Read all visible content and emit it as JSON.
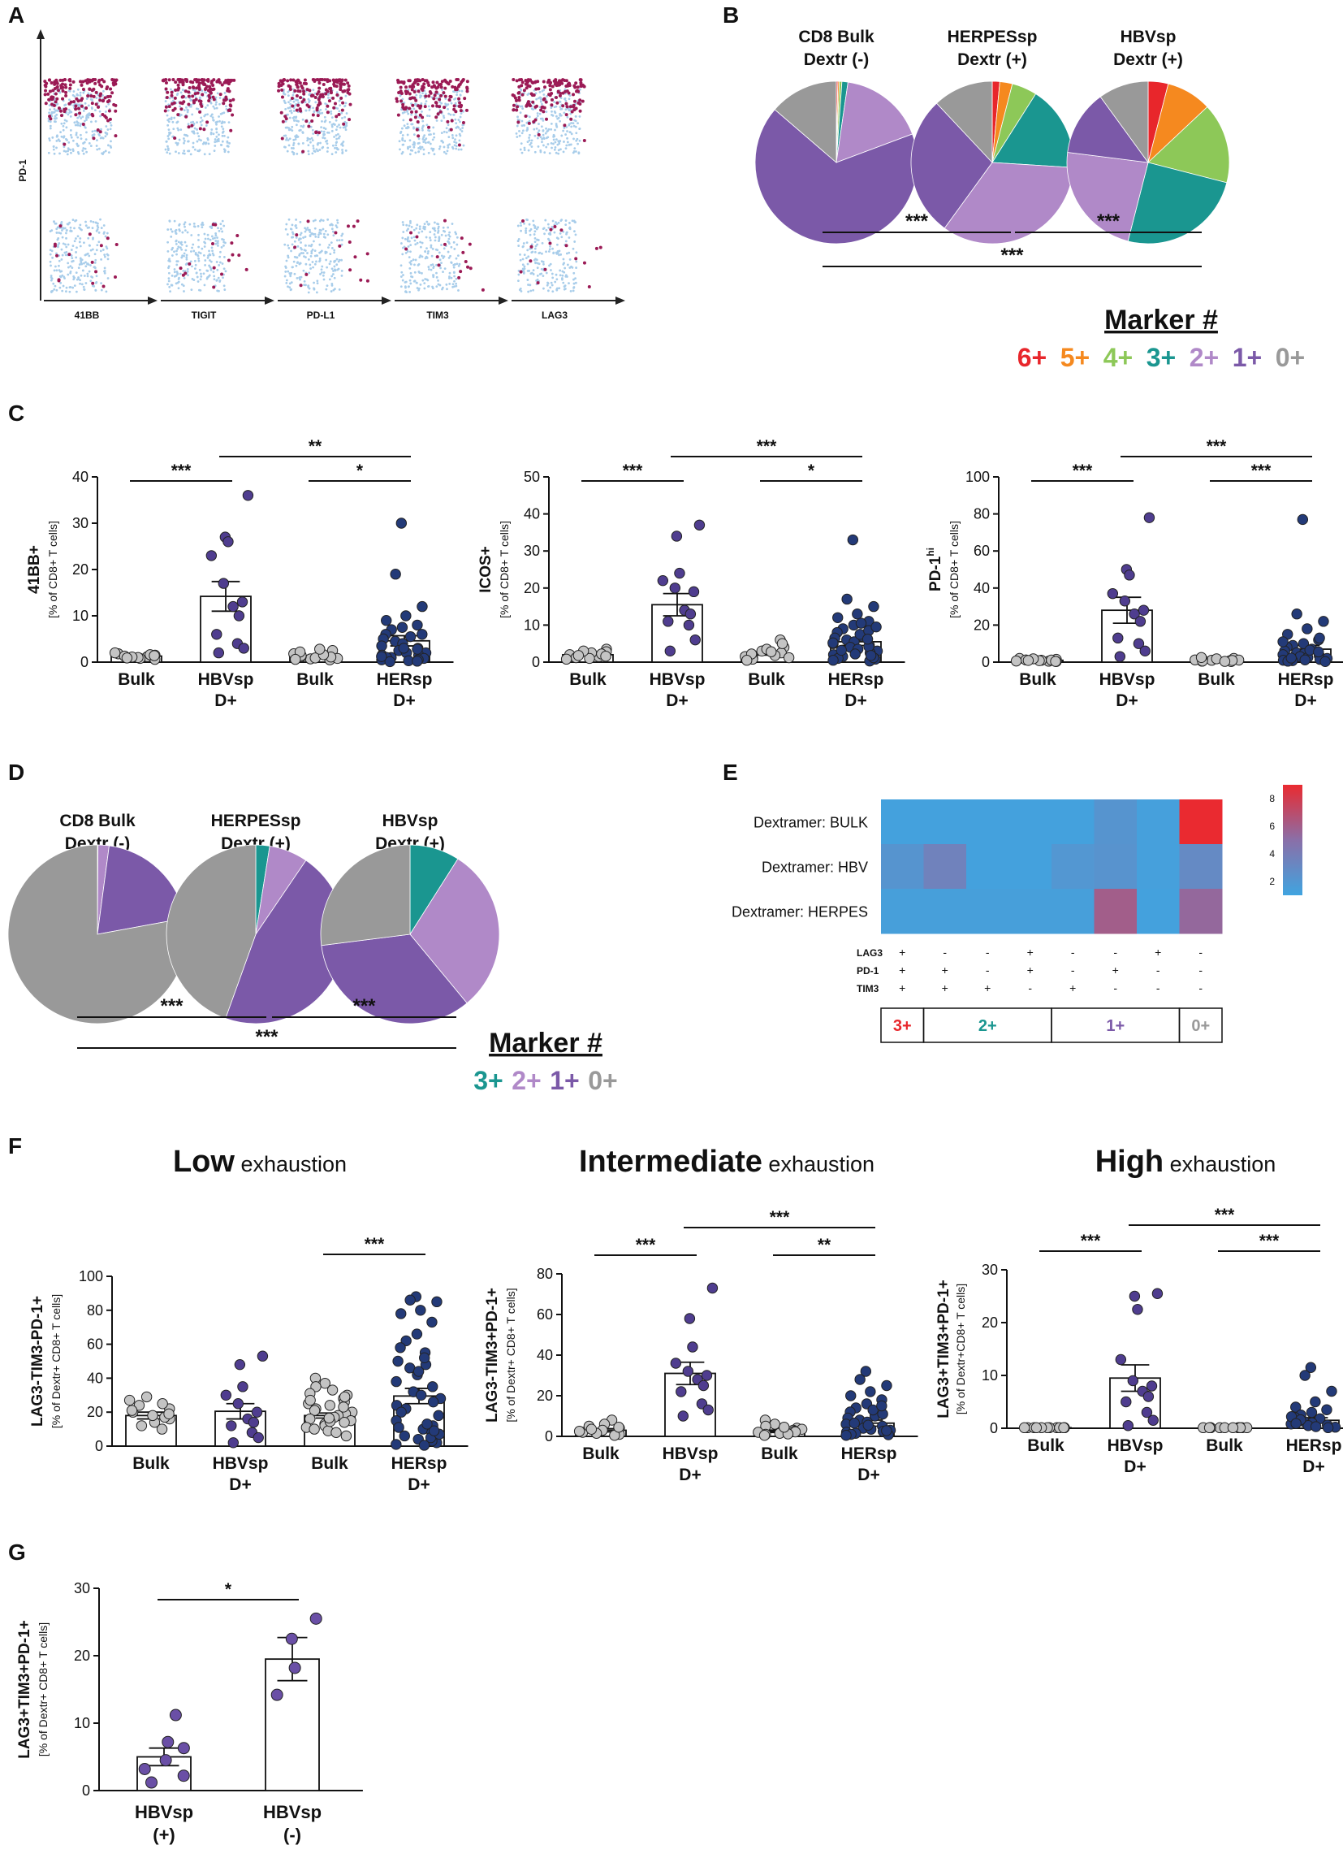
{
  "figure": {
    "panel_labels": [
      "A",
      "B",
      "C",
      "D",
      "E",
      "F",
      "G"
    ],
    "colors": {
      "bulk_gray": "#c4c4c4",
      "hbv_purple": "#4f3d8f",
      "her_navy": "#233a78",
      "herg_purple": "#6a4fa6",
      "dot_pink": "#9b1a55",
      "dot_blue": "#a8cdea",
      "m6": "#e8262b",
      "m5": "#f5891f",
      "m4": "#8dc858",
      "m3": "#1a9690",
      "m2": "#b089c8",
      "m1": "#7b59a8",
      "m0": "#999999"
    }
  },
  "chart_data": [
    {
      "id": "A",
      "type": "scatter",
      "title": "",
      "ylabel": "PD-1",
      "subpanels": [
        "41BB",
        "TIGIT",
        "PD-L1",
        "TIM3",
        "LAG3"
      ]
    },
    {
      "id": "B",
      "type": "pie",
      "pies": [
        {
          "title1": "CD8 Bulk",
          "title2": "Dextr (-)",
          "slices": [
            {
              "label": "6+",
              "value": 0.3
            },
            {
              "label": "5+",
              "value": 0.3
            },
            {
              "label": "4+",
              "value": 0.5
            },
            {
              "label": "3+",
              "value": 1.2
            },
            {
              "label": "2+",
              "value": 17
            },
            {
              "label": "1+",
              "value": 67
            },
            {
              "label": "0+",
              "value": 13.7
            }
          ]
        },
        {
          "title1": "HERPESsp",
          "title2": "Dextr (+)",
          "slices": [
            {
              "label": "6+",
              "value": 1.5
            },
            {
              "label": "5+",
              "value": 2.5
            },
            {
              "label": "4+",
              "value": 5
            },
            {
              "label": "3+",
              "value": 17
            },
            {
              "label": "2+",
              "value": 34
            },
            {
              "label": "1+",
              "value": 28
            },
            {
              "label": "0+",
              "value": 12
            }
          ]
        },
        {
          "title1": "HBVsp",
          "title2": "Dextr (+)",
          "slices": [
            {
              "label": "6+",
              "value": 4
            },
            {
              "label": "5+",
              "value": 9
            },
            {
              "label": "4+",
              "value": 16
            },
            {
              "label": "3+",
              "value": 25
            },
            {
              "label": "2+",
              "value": 23
            },
            {
              "label": "1+",
              "value": 13
            },
            {
              "label": "0+",
              "value": 10
            }
          ]
        }
      ],
      "sig": [
        "***",
        "***",
        "***"
      ],
      "legend_title": "Marker #",
      "legend": [
        "6+",
        "5+",
        "4+",
        "3+",
        "2+",
        "1+",
        "0+"
      ]
    },
    {
      "id": "C1",
      "type": "bar",
      "categories": [
        "Bulk",
        "HBVsp\nD+",
        "Bulk",
        "HERsp\nD+"
      ],
      "values": [
        1.3,
        14.2,
        1.2,
        4.6
      ],
      "sem": [
        0.2,
        3.2,
        0.2,
        1.1
      ],
      "ylabel_main": "41BB+",
      "ylabel_sub": "[% of CD8+ T cells]",
      "ylim": [
        0,
        40
      ],
      "yticks": [
        0,
        10,
        20,
        30,
        40
      ],
      "sig": [
        {
          "from": 0,
          "to": 1,
          "text": "***"
        },
        {
          "from": 2,
          "to": 3,
          "text": "*"
        },
        {
          "from": 1,
          "to": 3,
          "text": "**"
        }
      ],
      "points": [
        [
          1.2,
          0.8,
          1.5,
          1.0,
          1.8,
          0.6,
          1.3,
          2.0,
          1.1,
          0.9,
          1.6,
          1.4
        ],
        [
          36,
          27,
          26,
          23,
          17,
          13,
          12,
          10,
          6,
          4,
          3,
          2
        ],
        [
          1.5,
          0.7,
          1.2,
          2.5,
          1.0,
          0.5,
          1.8,
          0.9,
          1.4,
          2.2,
          0.8,
          1.1,
          1.6,
          2.8,
          0.6
        ],
        [
          30,
          19,
          12,
          10,
          9,
          8,
          7.5,
          7,
          6,
          5.5,
          5,
          4.5,
          4,
          3.5,
          3,
          2.5,
          2,
          2,
          1.5,
          1.5,
          1,
          1,
          0.8,
          0.5,
          0.5,
          0.3,
          0.2,
          0.1,
          3,
          6,
          2.8,
          1.2
        ]
      ]
    },
    {
      "id": "C2",
      "type": "bar",
      "categories": [
        "Bulk",
        "HBVsp\nD+",
        "Bulk",
        "HERsp\nD+"
      ],
      "values": [
        2.0,
        15.5,
        2.2,
        5.5
      ],
      "sem": [
        0.3,
        3.0,
        0.3,
        1.0
      ],
      "ylabel_main": "ICOS+",
      "ylabel_sub": "[% of CD8+ T cells]",
      "ylim": [
        0,
        50
      ],
      "yticks": [
        0,
        10,
        20,
        30,
        40,
        50
      ],
      "sig": [
        {
          "from": 0,
          "to": 1,
          "text": "***"
        },
        {
          "from": 2,
          "to": 3,
          "text": "*"
        },
        {
          "from": 1,
          "to": 3,
          "text": "***"
        }
      ],
      "points": [
        [
          1.5,
          2.5,
          3.5,
          1.0,
          2.0,
          2.8,
          1.2,
          0.8,
          3.0,
          1.8,
          2.2,
          1.6
        ],
        [
          37,
          34,
          24,
          22,
          20,
          19,
          14,
          13,
          11,
          10,
          6,
          3
        ],
        [
          2,
          3,
          1,
          4,
          6,
          2.5,
          1.5,
          3.5,
          0.8,
          2.2,
          1.2,
          5,
          1.8,
          2.8,
          0.5
        ],
        [
          33,
          17,
          15,
          13,
          12,
          11,
          10,
          9,
          8,
          7,
          6.5,
          6,
          5.5,
          5,
          4.5,
          4,
          3.5,
          3,
          2.5,
          2,
          1.5,
          1,
          0.8,
          0.5,
          0.3,
          7.5,
          8.5,
          3.2,
          2.2,
          1.2,
          4.2,
          5.2,
          6.2,
          9.5,
          10.5,
          1.8
        ]
      ]
    },
    {
      "id": "C3",
      "type": "bar",
      "categories": [
        "Bulk",
        "HBVsp\nD+",
        "Bulk",
        "HERsp\nD+"
      ],
      "values": [
        1.0,
        28.0,
        1.0,
        7.0
      ],
      "sem": [
        0.2,
        7.0,
        0.2,
        2.0
      ],
      "ylabel_main": "PD-1",
      "ylabel_sup": "hi",
      "ylabel_sub": "[% of CD8+ T cells]",
      "ylim": [
        0,
        100
      ],
      "yticks": [
        0,
        20,
        40,
        60,
        80,
        100
      ],
      "sig": [
        {
          "from": 0,
          "to": 1,
          "text": "***"
        },
        {
          "from": 2,
          "to": 3,
          "text": "***"
        },
        {
          "from": 1,
          "to": 3,
          "text": "***"
        }
      ],
      "points": [
        [
          0.5,
          1,
          1.5,
          0.8,
          2,
          0.3,
          1.2,
          0.6,
          1.8,
          0.9,
          1.1,
          0.4
        ],
        [
          78,
          50,
          47,
          37,
          33,
          28,
          26,
          22,
          13,
          10,
          6,
          3
        ],
        [
          0.5,
          1,
          1.5,
          2,
          0.8,
          0.3,
          1.2,
          1.8,
          0.6,
          2.5,
          1.1,
          0.9,
          0.4
        ],
        [
          77,
          26,
          22,
          18,
          15,
          12,
          10,
          9,
          8,
          7,
          6,
          5,
          4.5,
          4,
          3.5,
          3,
          2.5,
          2,
          1.5,
          1,
          0.8,
          0.5,
          0.3,
          11,
          13,
          6.5,
          5.5,
          2.2,
          1.2
        ]
      ]
    },
    {
      "id": "D",
      "type": "pie",
      "pies": [
        {
          "title1": "CD8 Bulk",
          "title2": "Dextr (-)",
          "slices": [
            {
              "label": "3+",
              "value": 0.1
            },
            {
              "label": "2+",
              "value": 2
            },
            {
              "label": "1+",
              "value": 20
            },
            {
              "label": "0+",
              "value": 77.9
            }
          ]
        },
        {
          "title1": "HERPESsp",
          "title2": "Dextr (+)",
          "slices": [
            {
              "label": "3+",
              "value": 2.5
            },
            {
              "label": "2+",
              "value": 7
            },
            {
              "label": "1+",
              "value": 46
            },
            {
              "label": "0+",
              "value": 44.5
            }
          ]
        },
        {
          "title1": "HBVsp",
          "title2": "Dextr (+)",
          "slices": [
            {
              "label": "3+",
              "value": 9
            },
            {
              "label": "2+",
              "value": 30
            },
            {
              "label": "1+",
              "value": 34
            },
            {
              "label": "0+",
              "value": 27
            }
          ]
        }
      ],
      "sig": [
        "***",
        "***",
        "***"
      ],
      "legend_title": "Marker #",
      "legend": [
        "3+",
        "2+",
        "1+",
        "0+"
      ]
    },
    {
      "id": "E",
      "type": "heatmap",
      "rows": [
        "Dextramer: BULK",
        "Dextramer: HBV",
        "Dextramer: HERPES"
      ],
      "values": [
        [
          1.2,
          1.2,
          1.2,
          1.2,
          1.2,
          2.2,
          1.3,
          9.0
        ],
        [
          2.2,
          3.6,
          1.2,
          1.2,
          2.0,
          2.3,
          1.3,
          3.0
        ],
        [
          1.4,
          1.4,
          1.4,
          1.4,
          1.4,
          6.0,
          1.2,
          5.4
        ]
      ],
      "colorbar_ticks": [
        "8",
        "6",
        "4",
        "2"
      ],
      "color_low": "#40a4e0",
      "color_mid": "#8a6fa8",
      "color_high": "#ea2a30",
      "vmin": 1,
      "vmax": 9,
      "marker_rows": [
        {
          "name": "LAG3",
          "signs": [
            "+",
            "-",
            "-",
            "+",
            "-",
            "-",
            "+",
            "-"
          ]
        },
        {
          "name": "PD-1",
          "signs": [
            "+",
            "+",
            "-",
            "+",
            "-",
            "+",
            "-",
            "-"
          ]
        },
        {
          "name": "TIM3",
          "signs": [
            "+",
            "+",
            "+",
            "-",
            "+",
            "-",
            "-",
            "-"
          ]
        }
      ],
      "groups": [
        {
          "label": "3+",
          "span": 1,
          "color": "#e8262b"
        },
        {
          "label": "2+",
          "span": 3,
          "color": "#1a9690"
        },
        {
          "label": "1+",
          "span": 3,
          "color": "#7b59a8"
        },
        {
          "label": "0+",
          "span": 1,
          "color": "#999999"
        }
      ]
    },
    {
      "id": "F1",
      "type": "bar",
      "title_bold": "Low",
      "title_rest": " exhaustion",
      "categories": [
        "Bulk",
        "HBVsp\nD+",
        "Bulk",
        "HERsp\nD+"
      ],
      "values": [
        18.0,
        20.5,
        18.0,
        29.5
      ],
      "sem": [
        2.0,
        4.5,
        1.5,
        4.5
      ],
      "ylabel_main": "LAG3-TIM3-PD-1+",
      "ylabel_sub": "[% of Dextr+ CD8+ T cells]",
      "ylim": [
        0,
        100
      ],
      "yticks": [
        0,
        20,
        40,
        60,
        80,
        100
      ],
      "sig": [
        {
          "from": 2,
          "to": 3,
          "text": "***"
        }
      ],
      "points": [
        [
          10,
          14,
          16,
          18,
          20,
          22,
          24,
          27,
          29,
          12,
          17,
          19,
          21,
          25
        ],
        [
          53,
          48,
          35,
          30,
          25,
          20,
          16,
          14,
          12,
          8,
          5,
          2
        ],
        [
          40,
          37,
          35,
          30,
          28,
          26,
          25,
          24,
          22,
          21,
          20,
          19,
          18,
          17,
          16,
          15,
          14,
          13,
          12,
          11,
          10,
          9,
          8,
          6,
          33,
          31,
          29,
          27,
          23,
          14.5,
          16.5
        ],
        [
          88,
          86,
          85,
          80,
          78,
          73,
          66,
          62,
          58,
          55,
          50,
          46,
          42,
          38,
          35,
          32,
          30,
          28,
          26,
          24,
          22,
          20,
          18,
          15,
          12,
          10,
          8,
          6,
          4,
          2,
          3,
          1,
          5,
          7,
          0.5,
          9,
          11,
          13,
          44,
          48,
          52
        ]
      ]
    },
    {
      "id": "F2",
      "type": "bar",
      "title_bold": "Intermediate",
      "title_rest": " exhaustion",
      "categories": [
        "Bulk",
        "HBVsp\nD+",
        "Bulk",
        "HERsp\nD+"
      ],
      "values": [
        3.0,
        31.0,
        2.5,
        6.5
      ],
      "sem": [
        0.8,
        5.5,
        0.6,
        1.5
      ],
      "ylabel_main": "LAG3-TIM3+PD-1+",
      "ylabel_sub": "[% of Dextr+ CD8+ T cells]",
      "ylim": [
        0,
        80
      ],
      "yticks": [
        0,
        20,
        40,
        60,
        80
      ],
      "sig": [
        {
          "from": 0,
          "to": 1,
          "text": "***"
        },
        {
          "from": 2,
          "to": 3,
          "text": "**"
        },
        {
          "from": 1,
          "to": 3,
          "text": "***"
        }
      ],
      "points": [
        [
          8,
          6,
          4,
          3,
          2,
          1,
          5,
          2.5,
          1.5,
          3.5,
          0.5,
          4.5
        ],
        [
          73,
          58,
          44,
          36,
          32,
          30,
          28,
          25,
          22,
          16,
          13,
          10
        ],
        [
          8,
          6,
          5,
          4,
          3,
          2.5,
          2,
          1.5,
          1,
          0.5,
          3.5,
          2.2,
          1.2,
          4.5
        ],
        [
          32,
          28,
          25,
          22,
          20,
          18,
          16,
          14,
          12,
          10,
          9,
          8,
          7,
          6,
          5,
          4,
          3.5,
          3,
          2.5,
          2,
          1.5,
          1,
          0.8,
          0.5,
          11,
          13,
          15,
          6.5,
          5.5,
          2.8
        ]
      ]
    },
    {
      "id": "F3",
      "type": "bar",
      "title_bold": "High",
      "title_rest": " exhaustion",
      "categories": [
        "Bulk",
        "HBVsp\nD+",
        "Bulk",
        "HERsp\nD+"
      ],
      "values": [
        0.1,
        9.5,
        0.1,
        1.5
      ],
      "sem": [
        0.05,
        2.5,
        0.05,
        0.5
      ],
      "ylabel_main": "LAG3+TIM3+PD-1+",
      "ylabel_sub": "[% of Dextr+CD8+ T cells]",
      "ylim": [
        0,
        30
      ],
      "yticks": [
        0,
        10,
        20,
        30
      ],
      "sig": [
        {
          "from": 0,
          "to": 1,
          "text": "***"
        },
        {
          "from": 2,
          "to": 3,
          "text": "***"
        },
        {
          "from": 1,
          "to": 3,
          "text": "***"
        }
      ],
      "points": [
        [
          0.1,
          0.1,
          0.1,
          0.1,
          0.1,
          0.1,
          0.1,
          0.1,
          0.1,
          0.1,
          0.1,
          0.1
        ],
        [
          25.5,
          25,
          22.5,
          13,
          9,
          8,
          7,
          6,
          5,
          3,
          1.5,
          0.5
        ],
        [
          0.1,
          0.1,
          0.1,
          0.1,
          0.1,
          0.1,
          0.1,
          0.1,
          0.1,
          0.1,
          0.1,
          0.1,
          0.1
        ],
        [
          11.5,
          10,
          7,
          5,
          4,
          3.5,
          3,
          2.5,
          2,
          1.8,
          1.5,
          1.2,
          1,
          0.8,
          0.6,
          0.5,
          0.3,
          0.2,
          0.1,
          2.2,
          1.6,
          0.9
        ]
      ]
    },
    {
      "id": "G",
      "type": "bar",
      "categories": [
        "HBVsp\n(+)",
        "HBVsp\n(-)"
      ],
      "values": [
        5.0,
        19.5
      ],
      "sem": [
        1.3,
        3.2
      ],
      "ylabel_main": "LAG3+TIM3+PD-1+",
      "ylabel_sub": "[% of Dextr+ CD8+ T cells]",
      "ylim": [
        0,
        30
      ],
      "yticks": [
        0,
        10,
        20,
        30
      ],
      "sig": [
        {
          "from": 0,
          "to": 1,
          "text": "*"
        }
      ],
      "points": [
        [
          11.2,
          7.2,
          6.3,
          4.5,
          3.2,
          2.2,
          1.2
        ],
        [
          25.5,
          22.5,
          18.2,
          14.2
        ]
      ]
    }
  ]
}
